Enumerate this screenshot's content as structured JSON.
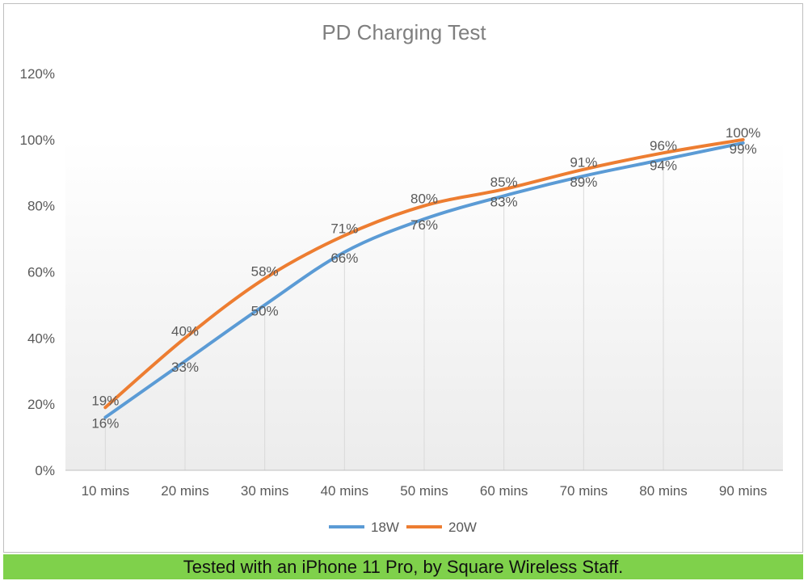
{
  "chart_data": {
    "type": "line",
    "title": "PD Charging Test",
    "categories": [
      "10 mins",
      "20 mins",
      "30 mins",
      "40 mins",
      "50 mins",
      "60 mins",
      "70 mins",
      "80 mins",
      "90 mins"
    ],
    "series": [
      {
        "name": "18W",
        "color": "#5b9bd5",
        "values": [
          16,
          33,
          50,
          66,
          76,
          83,
          89,
          94,
          99
        ],
        "labels": [
          "16%",
          "33%",
          "50%",
          "66%",
          "76%",
          "83%",
          "89%",
          "94%",
          "99%"
        ]
      },
      {
        "name": "20W",
        "color": "#ed7d31",
        "values": [
          19,
          40,
          58,
          71,
          80,
          85,
          91,
          96,
          100
        ],
        "labels": [
          "19%",
          "40%",
          "58%",
          "71%",
          "80%",
          "85%",
          "91%",
          "96%",
          "100%"
        ]
      }
    ],
    "ylim": [
      0,
      120
    ],
    "yticks": [
      "0%",
      "20%",
      "40%",
      "60%",
      "80%",
      "100%",
      "120%"
    ],
    "xlabel": "",
    "ylabel": "",
    "grid": "vertical",
    "legend": "bottom"
  },
  "footer": {
    "text": "Tested with an iPhone 11 Pro, by Square Wireless Staff."
  }
}
